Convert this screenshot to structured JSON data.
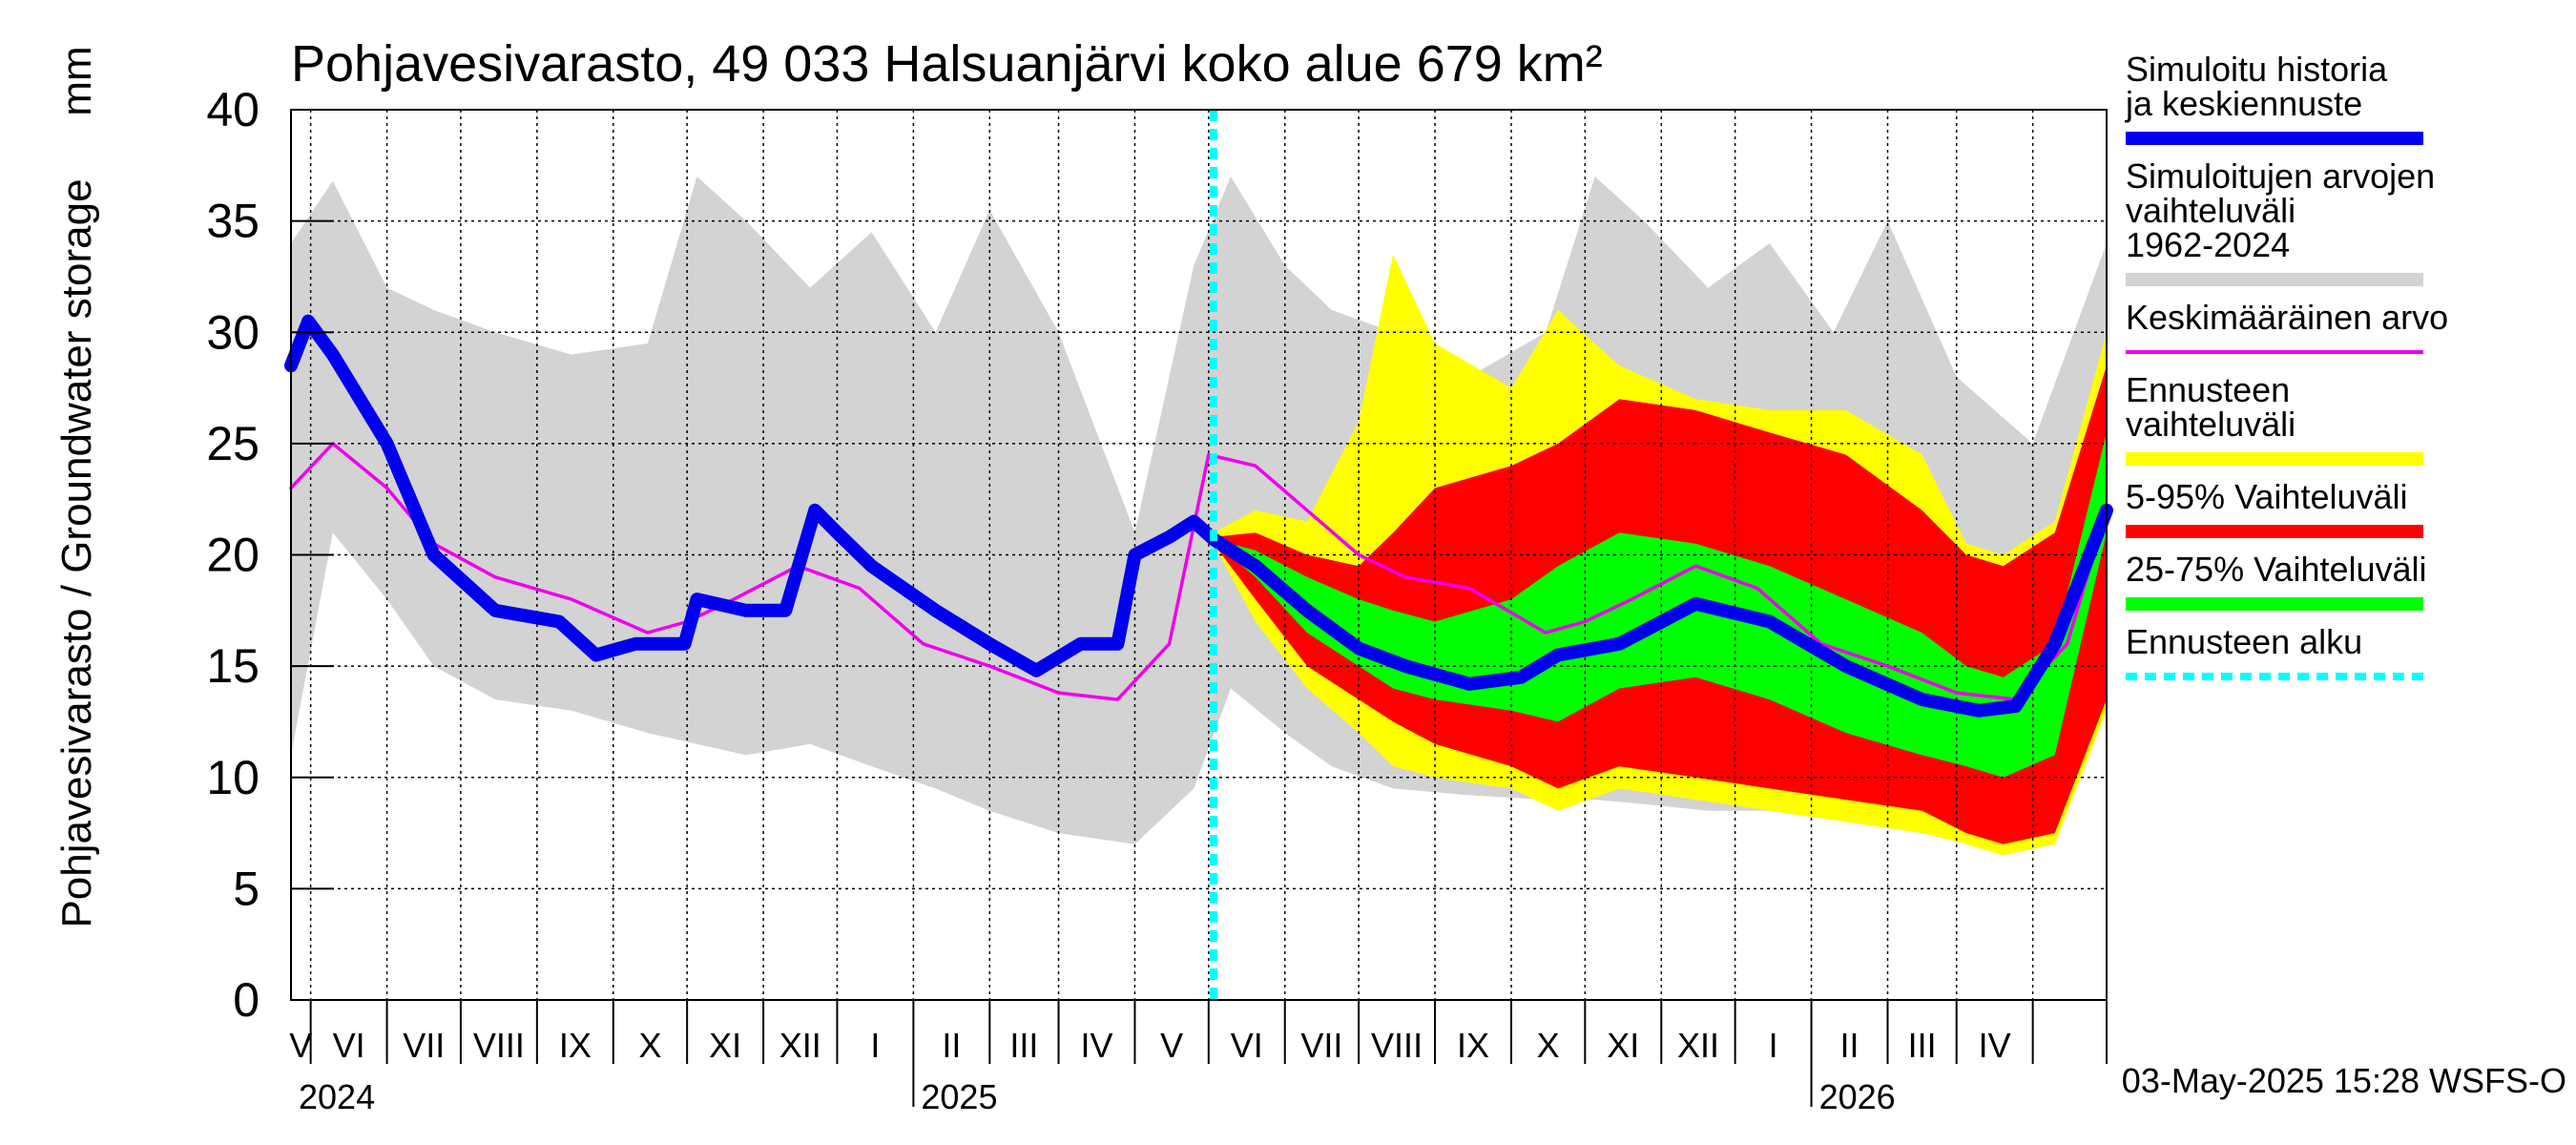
{
  "chart_data": {
    "type": "area",
    "title": "Pohjavesivarasto, 49 033 Halsuanjärvi koko alue 679 km²",
    "ylabel": "Pohjavesivarasto / Groundwater storage",
    "yunit": "mm",
    "ylim": [
      0,
      40
    ],
    "yticks": [
      "0",
      "5",
      "10",
      "15",
      "20",
      "25",
      "30",
      "35",
      "40"
    ],
    "xlim": [
      "2024-04-23",
      "2026-05-01"
    ],
    "forecast_start": "2025-05-03",
    "grid": true,
    "legend_position": "right",
    "months": [
      "V",
      "VI",
      "VII",
      "VIII",
      "IX",
      "X",
      "XI",
      "XII",
      "I",
      "II",
      "III",
      "IV",
      "V",
      "VI",
      "VII",
      "VIII",
      "IX",
      "X",
      "XI",
      "XII",
      "I",
      "II",
      "III",
      "IV"
    ],
    "years": [
      "2024",
      "2025",
      "2026"
    ],
    "legend": [
      {
        "label": "Simuloitu historia ja keskiennuste",
        "color": "#0000ee",
        "style": "thick"
      },
      {
        "label": "Simuloitujen arvojen vaihteluväli 1962-2024",
        "color": "#d3d3d3",
        "style": "thick"
      },
      {
        "label": "Keskimääräinen arvo",
        "color": "#ee00ee",
        "style": "thin"
      },
      {
        "label": "Ennusteen vaihteluväli",
        "color": "#ffff00",
        "style": "thick"
      },
      {
        "label": "5-95% Vaihteluväli",
        "color": "#ff0000",
        "style": "thick"
      },
      {
        "label": "25-75% Vaihteluväli",
        "color": "#00ff00",
        "style": "thick"
      },
      {
        "label": "Ennusteen alku",
        "color": "#00ffff",
        "style": "dashed"
      }
    ],
    "series": [
      {
        "name": "Simuloitujen arvojen vaihteluväli 1962-2024",
        "kind": "band",
        "color": "#d3d3d3",
        "x": [
          "2024-04-23",
          "2024-05-10",
          "2024-06-01",
          "2024-06-20",
          "2024-07-15",
          "2024-08-15",
          "2024-09-15",
          "2024-10-05",
          "2024-10-25",
          "2024-11-20",
          "2024-12-15",
          "2025-01-10",
          "2025-02-01",
          "2025-03-01",
          "2025-04-01",
          "2025-04-25",
          "2025-05-10",
          "2025-06-01",
          "2025-06-20",
          "2025-07-15",
          "2025-08-15",
          "2025-09-15",
          "2025-10-05",
          "2025-10-25",
          "2025-11-20",
          "2025-12-15",
          "2026-01-10",
          "2026-02-01",
          "2026-03-01",
          "2026-04-01",
          "2026-05-01"
        ],
        "low": [
          11.0,
          21.0,
          18.0,
          15.0,
          13.5,
          13.0,
          12.0,
          11.5,
          11.0,
          11.5,
          10.5,
          9.5,
          8.5,
          7.5,
          7.0,
          9.5,
          14.0,
          12.0,
          10.5,
          9.5,
          9.2,
          9.0,
          9.0,
          8.8,
          8.5,
          8.5,
          8.2,
          8.0,
          7.5,
          7.0,
          13.0
        ],
        "high": [
          34.0,
          36.8,
          32.0,
          31.0,
          30.0,
          29.0,
          29.5,
          37.0,
          35.0,
          32.0,
          34.5,
          30.0,
          35.5,
          30.0,
          21.0,
          33.0,
          37.0,
          33.0,
          31.0,
          30.0,
          28.0,
          30.0,
          37.0,
          35.0,
          32.0,
          34.0,
          30.0,
          35.0,
          28.0,
          25.0,
          34.0
        ]
      },
      {
        "name": "Ennusteen vaihteluväli",
        "kind": "band",
        "color": "#ffff00",
        "x": [
          "2025-05-03",
          "2025-05-20",
          "2025-06-10",
          "2025-07-01",
          "2025-07-15",
          "2025-08-01",
          "2025-09-01",
          "2025-09-20",
          "2025-10-15",
          "2025-11-15",
          "2025-12-15",
          "2026-01-15",
          "2026-02-15",
          "2026-03-05",
          "2026-03-20",
          "2026-04-10",
          "2026-05-01"
        ],
        "low": [
          20.5,
          17.0,
          14.0,
          12.0,
          10.5,
          10.0,
          9.5,
          8.5,
          9.5,
          9.0,
          8.5,
          8.0,
          7.5,
          7.0,
          6.5,
          7.0,
          13.0
        ],
        "high": [
          21.0,
          22.0,
          21.5,
          26.0,
          33.5,
          29.5,
          27.5,
          31.0,
          28.5,
          27.0,
          26.5,
          26.5,
          24.5,
          20.5,
          20.0,
          21.5,
          30.0
        ]
      },
      {
        "name": "5-95% Vaihteluväli",
        "kind": "band",
        "color": "#ff0000",
        "x": [
          "2025-05-03",
          "2025-05-20",
          "2025-06-10",
          "2025-07-01",
          "2025-07-15",
          "2025-08-01",
          "2025-09-01",
          "2025-09-20",
          "2025-10-15",
          "2025-11-15",
          "2025-12-15",
          "2026-01-15",
          "2026-02-15",
          "2026-03-05",
          "2026-03-20",
          "2026-04-10",
          "2026-05-01"
        ],
        "low": [
          20.5,
          18.0,
          15.0,
          13.5,
          12.5,
          11.5,
          10.5,
          9.5,
          10.5,
          10.0,
          9.5,
          9.0,
          8.5,
          7.5,
          7.0,
          7.5,
          13.5
        ],
        "high": [
          20.8,
          21.0,
          20.0,
          19.5,
          21.0,
          23.0,
          24.0,
          25.0,
          27.0,
          26.5,
          25.5,
          24.5,
          22.0,
          20.0,
          19.5,
          21.0,
          28.5
        ]
      },
      {
        "name": "25-75% Vaihteluväli",
        "kind": "band",
        "color": "#00ff00",
        "x": [
          "2025-05-03",
          "2025-05-20",
          "2025-06-10",
          "2025-07-01",
          "2025-07-15",
          "2025-08-01",
          "2025-09-01",
          "2025-09-20",
          "2025-10-15",
          "2025-11-15",
          "2025-12-15",
          "2026-01-15",
          "2026-02-15",
          "2026-03-05",
          "2026-03-20",
          "2026-04-10",
          "2026-05-01"
        ],
        "low": [
          20.6,
          19.0,
          16.5,
          15.0,
          14.0,
          13.5,
          13.0,
          12.5,
          14.0,
          14.5,
          13.5,
          12.0,
          11.0,
          10.5,
          10.0,
          11.0,
          21.0
        ],
        "high": [
          20.7,
          20.2,
          19.0,
          18.0,
          17.5,
          17.0,
          18.0,
          19.5,
          21.0,
          20.5,
          19.5,
          18.0,
          16.5,
          15.0,
          14.5,
          16.0,
          25.5
        ]
      },
      {
        "name": "Keskimääräinen arvo",
        "kind": "line",
        "color": "#ee00ee",
        "x": [
          "2024-04-23",
          "2024-05-10",
          "2024-06-01",
          "2024-06-20",
          "2024-07-15",
          "2024-08-15",
          "2024-09-15",
          "2024-10-01",
          "2024-10-20",
          "2024-11-15",
          "2024-12-10",
          "2025-01-05",
          "2025-02-01",
          "2025-03-01",
          "2025-03-25",
          "2025-04-15",
          "2025-05-01",
          "2025-05-20",
          "2025-06-10",
          "2025-07-01",
          "2025-07-20",
          "2025-08-15",
          "2025-09-15",
          "2025-10-01",
          "2025-10-20",
          "2025-11-15",
          "2025-12-10",
          "2026-01-05",
          "2026-02-01",
          "2026-03-01",
          "2026-03-25",
          "2026-04-15",
          "2026-05-01"
        ],
        "values": [
          23.0,
          25.0,
          23.0,
          20.5,
          19.0,
          18.0,
          16.5,
          17.0,
          18.0,
          19.5,
          18.5,
          16.0,
          15.0,
          13.8,
          13.5,
          16.0,
          24.5,
          24.0,
          22.0,
          20.0,
          19.0,
          18.5,
          16.5,
          17.0,
          18.0,
          19.5,
          18.5,
          16.0,
          15.0,
          13.8,
          13.5,
          16.0,
          22.0
        ]
      },
      {
        "name": "Simuloitu historia ja keskiennuste",
        "kind": "line",
        "color": "#0000ee",
        "x": [
          "2024-04-23",
          "2024-04-30",
          "2024-05-10",
          "2024-06-01",
          "2024-06-20",
          "2024-07-15",
          "2024-08-10",
          "2024-08-25",
          "2024-09-10",
          "2024-09-30",
          "2024-10-05",
          "2024-10-25",
          "2024-11-10",
          "2024-11-22",
          "2024-12-01",
          "2024-12-15",
          "2025-01-10",
          "2025-02-01",
          "2025-02-20",
          "2025-03-10",
          "2025-03-25",
          "2025-04-01",
          "2025-04-15",
          "2025-04-25",
          "2025-05-03",
          "2025-05-20",
          "2025-06-10",
          "2025-07-01",
          "2025-07-20",
          "2025-08-15",
          "2025-09-05",
          "2025-09-20",
          "2025-10-15",
          "2025-11-15",
          "2025-12-15",
          "2026-01-15",
          "2026-02-15",
          "2026-03-10",
          "2026-03-25",
          "2026-04-10",
          "2026-05-01"
        ],
        "values": [
          28.5,
          30.5,
          29.0,
          25.0,
          20.0,
          17.5,
          17.0,
          15.5,
          16.0,
          16.0,
          18.0,
          17.5,
          17.5,
          22.0,
          21.0,
          19.5,
          17.5,
          16.0,
          14.8,
          16.0,
          16.0,
          20.0,
          20.8,
          21.5,
          20.7,
          19.5,
          17.5,
          15.8,
          15.0,
          14.2,
          14.5,
          15.5,
          16.0,
          17.8,
          17.0,
          15.0,
          13.5,
          13.0,
          13.2,
          16.0,
          22.0
        ]
      }
    ]
  },
  "footer": {
    "timestamp": "03-May-2025 15:28 WSFS-O"
  }
}
